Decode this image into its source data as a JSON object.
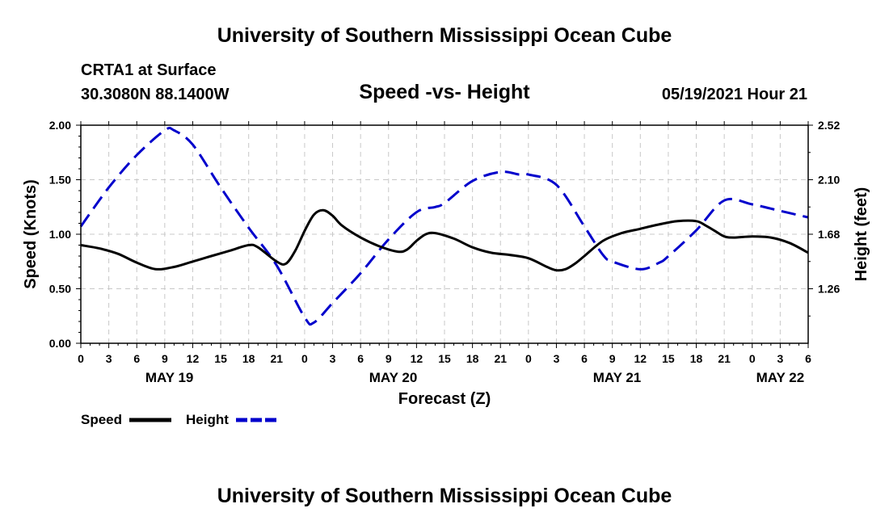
{
  "header": {
    "title": "University of Southern Mississippi Ocean Cube",
    "station": "CRTA1 at Surface",
    "coordinates": "30.3080N  88.1400W",
    "chart_title": "Speed -vs- Height",
    "datetime": "05/19/2021 Hour 21"
  },
  "footer": {
    "title": "University of Southern Mississippi Ocean Cube"
  },
  "chart_data": {
    "type": "line",
    "title": "Speed -vs- Height",
    "xlabel": "Forecast (Z)",
    "ylabel": "Speed (Knots)",
    "y2label": "Height (feet)",
    "x_unit": "forecast hours from 00Z May 19",
    "xlim": [
      0,
      78
    ],
    "ylim": [
      0,
      2.0
    ],
    "y2lim": [
      0.84,
      2.52
    ],
    "grid": true,
    "legend_position": "bottom-left",
    "x_ticks": [
      0,
      3,
      6,
      9,
      12,
      15,
      18,
      21,
      24,
      27,
      30,
      33,
      36,
      39,
      42,
      45,
      48,
      51,
      54,
      57,
      60,
      63,
      66,
      69,
      72,
      75,
      78
    ],
    "x_tick_labels": [
      "0",
      "3",
      "6",
      "9",
      "12",
      "15",
      "18",
      "21",
      "0",
      "3",
      "6",
      "9",
      "12",
      "15",
      "18",
      "21",
      "0",
      "3",
      "6",
      "9",
      "12",
      "15",
      "18",
      "21",
      "0",
      "3",
      "6"
    ],
    "day_labels": [
      {
        "label": "MAY 19",
        "x": 9.5
      },
      {
        "label": "MAY 20",
        "x": 33.5
      },
      {
        "label": "MAY 21",
        "x": 57.5
      },
      {
        "label": "MAY 22",
        "x": 75
      }
    ],
    "y_ticks": [
      0,
      0.5,
      1.0,
      1.5,
      2.0
    ],
    "y_tick_labels": [
      "0.00",
      "0.50",
      "1.00",
      "1.50",
      "2.00"
    ],
    "y2_ticks": [
      1.26,
      1.68,
      2.1,
      2.52
    ],
    "y2_tick_labels": [
      "1.26",
      "1.68",
      "2.10",
      "2.52"
    ],
    "series": [
      {
        "name": "Speed",
        "axis": "left",
        "color": "#000000",
        "dash": "solid",
        "x": [
          0,
          2,
          4,
          6,
          8,
          10,
          12,
          14,
          16,
          18,
          19,
          21,
          22,
          23,
          24,
          25,
          26,
          27,
          28,
          30,
          32,
          34,
          35,
          36,
          37,
          38,
          40,
          42,
          44,
          46,
          48,
          50,
          51,
          52,
          53,
          54,
          56,
          58,
          60,
          62,
          64,
          66,
          67,
          68,
          69,
          70,
          72,
          74,
          76,
          78
        ],
        "values": [
          0.9,
          0.87,
          0.82,
          0.74,
          0.68,
          0.7,
          0.75,
          0.8,
          0.85,
          0.9,
          0.88,
          0.75,
          0.73,
          0.85,
          1.03,
          1.18,
          1.22,
          1.17,
          1.08,
          0.97,
          0.89,
          0.84,
          0.86,
          0.94,
          1.0,
          1.01,
          0.96,
          0.88,
          0.83,
          0.81,
          0.78,
          0.7,
          0.67,
          0.68,
          0.73,
          0.8,
          0.94,
          1.01,
          1.05,
          1.09,
          1.12,
          1.12,
          1.08,
          1.03,
          0.98,
          0.97,
          0.98,
          0.97,
          0.92,
          0.83
        ]
      },
      {
        "name": "Height",
        "axis": "right",
        "color": "#0000cc",
        "dash": "dashed",
        "x": [
          0,
          3,
          6,
          9,
          10,
          12,
          15,
          18,
          21,
          24,
          25,
          27,
          30,
          33,
          36,
          38,
          39,
          42,
          45,
          47,
          48,
          51,
          54,
          56,
          57,
          60,
          62,
          63,
          66,
          69,
          72,
          75,
          78
        ],
        "values": [
          1.74,
          2.04,
          2.29,
          2.48,
          2.48,
          2.37,
          2.04,
          1.73,
          1.44,
          1.04,
          1.0,
          1.15,
          1.38,
          1.64,
          1.85,
          1.89,
          1.92,
          2.09,
          2.16,
          2.14,
          2.14,
          2.06,
          1.74,
          1.52,
          1.47,
          1.41,
          1.46,
          1.51,
          1.71,
          1.94,
          1.91,
          1.86,
          1.81
        ]
      }
    ]
  }
}
